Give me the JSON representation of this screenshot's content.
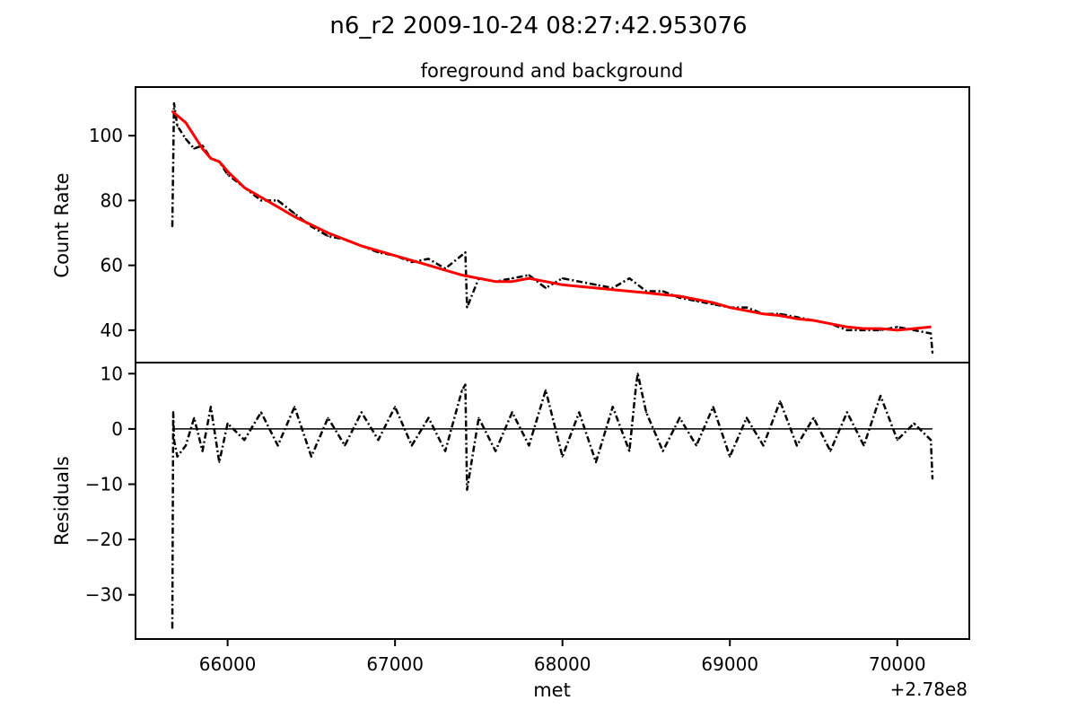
{
  "figure": {
    "suptitle": "n6_r2 2009-10-24 08:27:42.953076",
    "offset_label": "+2.78e8"
  },
  "colors": {
    "data": "#000000",
    "model": "#ff0000",
    "axes": "#000000",
    "background": "#ffffff"
  },
  "chart_data": [
    {
      "type": "line",
      "title": "foreground and background",
      "xlabel": "",
      "ylabel": "Count Rate",
      "xlim": [
        65450,
        70430
      ],
      "ylim": [
        30,
        115
      ],
      "xticks": [],
      "yticks": [
        40,
        60,
        80,
        100
      ],
      "ytick_labels": [
        "40",
        "60",
        "80",
        "100"
      ],
      "grid": false,
      "series": [
        {
          "style": "dash-dot, black (observed counts)",
          "x": [
            65670,
            65680,
            65700,
            65750,
            65800,
            65850,
            65900,
            65950,
            66000,
            66100,
            66200,
            66300,
            66400,
            66500,
            66600,
            66700,
            66800,
            66900,
            67000,
            67100,
            67200,
            67300,
            67420,
            67430,
            67500,
            67600,
            67700,
            67800,
            67900,
            68000,
            68100,
            68200,
            68300,
            68400,
            68500,
            68600,
            68700,
            68800,
            68900,
            69000,
            69100,
            69200,
            69300,
            69400,
            69500,
            69600,
            69700,
            69800,
            69900,
            70000,
            70100,
            70200,
            70210
          ],
          "y": [
            72,
            110,
            103,
            99,
            96,
            97,
            93,
            92,
            88,
            84,
            80,
            80,
            76,
            72,
            69,
            68,
            66,
            64,
            63,
            61,
            62,
            59,
            64,
            47,
            56,
            55,
            56,
            57,
            53,
            56,
            55,
            54,
            53,
            56,
            52,
            52,
            50,
            49,
            48,
            47,
            47,
            45,
            45,
            44,
            43,
            42,
            40,
            40,
            40,
            41,
            40,
            39,
            33
          ]
        },
        {
          "style": "solid, red (model fit)",
          "x": [
            65670,
            65750,
            65850,
            65900,
            65950,
            66000,
            66100,
            66200,
            66300,
            66400,
            66500,
            66600,
            66700,
            66800,
            66900,
            67000,
            67100,
            67200,
            67300,
            67400,
            67500,
            67600,
            67700,
            67800,
            67900,
            68000,
            68100,
            68200,
            68300,
            68400,
            68500,
            68600,
            68700,
            68800,
            68900,
            69000,
            69100,
            69200,
            69300,
            69400,
            69500,
            69600,
            69700,
            69800,
            69900,
            70000,
            70100,
            70200
          ],
          "y": [
            107.5,
            104,
            96,
            93,
            92,
            89,
            84,
            81,
            78,
            75,
            72.5,
            70,
            68,
            66,
            64.5,
            63,
            61.5,
            60,
            58.5,
            57,
            56,
            55,
            55,
            56,
            55,
            54,
            53.5,
            53,
            52.5,
            52,
            51.5,
            51,
            50.5,
            49.5,
            48.5,
            47,
            46,
            45,
            44.5,
            43.5,
            43,
            42,
            41,
            40.5,
            40.5,
            40,
            40.5,
            41
          ]
        }
      ]
    },
    {
      "type": "line",
      "title": "",
      "xlabel": "met",
      "ylabel": "Residuals",
      "xlim": [
        65450,
        70430
      ],
      "ylim": [
        -38,
        12
      ],
      "xticks": [
        66000,
        67000,
        68000,
        69000,
        70000
      ],
      "xtick_labels": [
        "66000",
        "67000",
        "68000",
        "69000",
        "70000"
      ],
      "yticks": [
        10,
        0,
        -10,
        -20,
        -30
      ],
      "ytick_labels": [
        "10",
        "0",
        "−10",
        "−20",
        "−30"
      ],
      "grid": false,
      "series": [
        {
          "style": "dash-dot, black (residuals)",
          "x": [
            65670,
            65675,
            65680,
            65700,
            65750,
            65800,
            65850,
            65900,
            65950,
            66000,
            66100,
            66200,
            66300,
            66400,
            66500,
            66600,
            66700,
            66800,
            66900,
            67000,
            67100,
            67200,
            67300,
            67400,
            67420,
            67430,
            67500,
            67600,
            67700,
            67800,
            67900,
            68000,
            68100,
            68200,
            68300,
            68400,
            68440,
            68450,
            68500,
            68600,
            68700,
            68800,
            68900,
            69000,
            69100,
            69200,
            69300,
            69400,
            69500,
            69600,
            69700,
            69800,
            69900,
            70000,
            70100,
            70200,
            70210
          ],
          "y": [
            -36,
            3,
            -2,
            -5,
            -3,
            2,
            -4,
            4,
            -6,
            1,
            -2,
            3,
            -3,
            4,
            -5,
            2,
            -3,
            3,
            -2,
            4,
            -3,
            2,
            -4,
            7,
            8,
            -11,
            2,
            -4,
            3,
            -3,
            7,
            -5,
            3,
            -6,
            4,
            -4,
            8,
            10,
            3,
            -4,
            2,
            -3,
            4,
            -5,
            2,
            -3,
            5,
            -3,
            2,
            -4,
            3,
            -3,
            6,
            -2,
            1,
            -2,
            -9
          ]
        }
      ]
    }
  ]
}
